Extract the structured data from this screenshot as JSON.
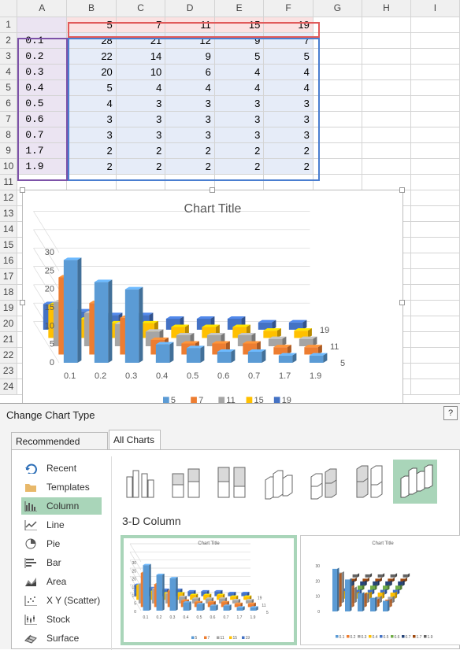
{
  "spreadsheet": {
    "col_headers": [
      "A",
      "B",
      "C",
      "D",
      "E",
      "F",
      "G",
      "H",
      "I"
    ],
    "row_numbers": [
      "1",
      "2",
      "3",
      "4",
      "5",
      "6",
      "7",
      "8",
      "9",
      "10",
      "11",
      "12",
      "13",
      "14",
      "15",
      "16",
      "17",
      "18",
      "19",
      "20",
      "21",
      "22",
      "23",
      "24"
    ],
    "header_row": [
      "5",
      "7",
      "11",
      "15",
      "19"
    ],
    "rows": [
      {
        "a": "0.1",
        "v": [
          "28",
          "21",
          "12",
          "9",
          "7"
        ]
      },
      {
        "a": "0.2",
        "v": [
          "22",
          "14",
          "9",
          "5",
          "5"
        ]
      },
      {
        "a": "0.3",
        "v": [
          "20",
          "10",
          "6",
          "4",
          "4"
        ]
      },
      {
        "a": "0.4",
        "v": [
          "5",
          "4",
          "4",
          "4",
          "4"
        ]
      },
      {
        "a": "0.5",
        "v": [
          "4",
          "3",
          "3",
          "3",
          "3"
        ]
      },
      {
        "a": "0.6",
        "v": [
          "3",
          "3",
          "3",
          "3",
          "3"
        ]
      },
      {
        "a": "0.7",
        "v": [
          "3",
          "3",
          "3",
          "3",
          "3"
        ]
      },
      {
        "a": "1.7",
        "v": [
          "2",
          "2",
          "2",
          "2",
          "2"
        ]
      },
      {
        "a": "1.9",
        "v": [
          "2",
          "2",
          "2",
          "2",
          "2"
        ]
      }
    ]
  },
  "chart_data": {
    "type": "bar",
    "subtype": "3-D column",
    "title": "Chart Title",
    "categories": [
      "0.1",
      "0.2",
      "0.3",
      "0.4",
      "0.5",
      "0.6",
      "0.7",
      "1.7",
      "1.9"
    ],
    "series": [
      {
        "name": "5",
        "values": [
          28,
          22,
          20,
          5,
          4,
          3,
          3,
          2,
          2
        ],
        "color": "#5b9bd5"
      },
      {
        "name": "7",
        "values": [
          21,
          14,
          10,
          4,
          3,
          3,
          3,
          2,
          2
        ],
        "color": "#ed7d31"
      },
      {
        "name": "11",
        "values": [
          12,
          9,
          6,
          4,
          3,
          3,
          3,
          2,
          2
        ],
        "color": "#a5a5a5"
      },
      {
        "name": "15",
        "values": [
          9,
          5,
          4,
          4,
          3,
          3,
          3,
          2,
          2
        ],
        "color": "#ffc000"
      },
      {
        "name": "19",
        "values": [
          7,
          5,
          4,
          4,
          3,
          3,
          3,
          2,
          2
        ],
        "color": "#4472c4"
      }
    ],
    "yticks": [
      "0",
      "5",
      "10",
      "15",
      "20",
      "25",
      "30"
    ],
    "depth_labels": [
      "5",
      "11",
      "19"
    ],
    "legend_placement": "bottom",
    "grid": true
  },
  "dialog": {
    "title": "Change Chart Type",
    "help": "?",
    "tabs": [
      "Recommended Charts",
      "All Charts"
    ],
    "active_tab": "All Charts",
    "nav": [
      "Recent",
      "Templates",
      "Column",
      "Line",
      "Pie",
      "Bar",
      "Area",
      "X Y (Scatter)",
      "Stock",
      "Surface"
    ],
    "nav_icons": [
      "recent-icon",
      "templates-icon",
      "column-icon",
      "line-icon",
      "pie-icon",
      "bar-icon",
      "area-icon",
      "scatter-icon",
      "stock-icon",
      "surface-icon"
    ],
    "selected_nav": "Column",
    "section_title": "3-D Column",
    "preview_title": "Chart Title",
    "preview2_legend": [
      "0.1",
      "0.2",
      "0.3",
      "0.4",
      "0.5",
      "0.6",
      "0.7",
      "1.7",
      "1.9"
    ]
  },
  "colors": {
    "accent": "#a9d5b9",
    "red_range": "#e05a5a",
    "blue_range": "#4a7ed0",
    "purple_range": "#7d52a8"
  }
}
